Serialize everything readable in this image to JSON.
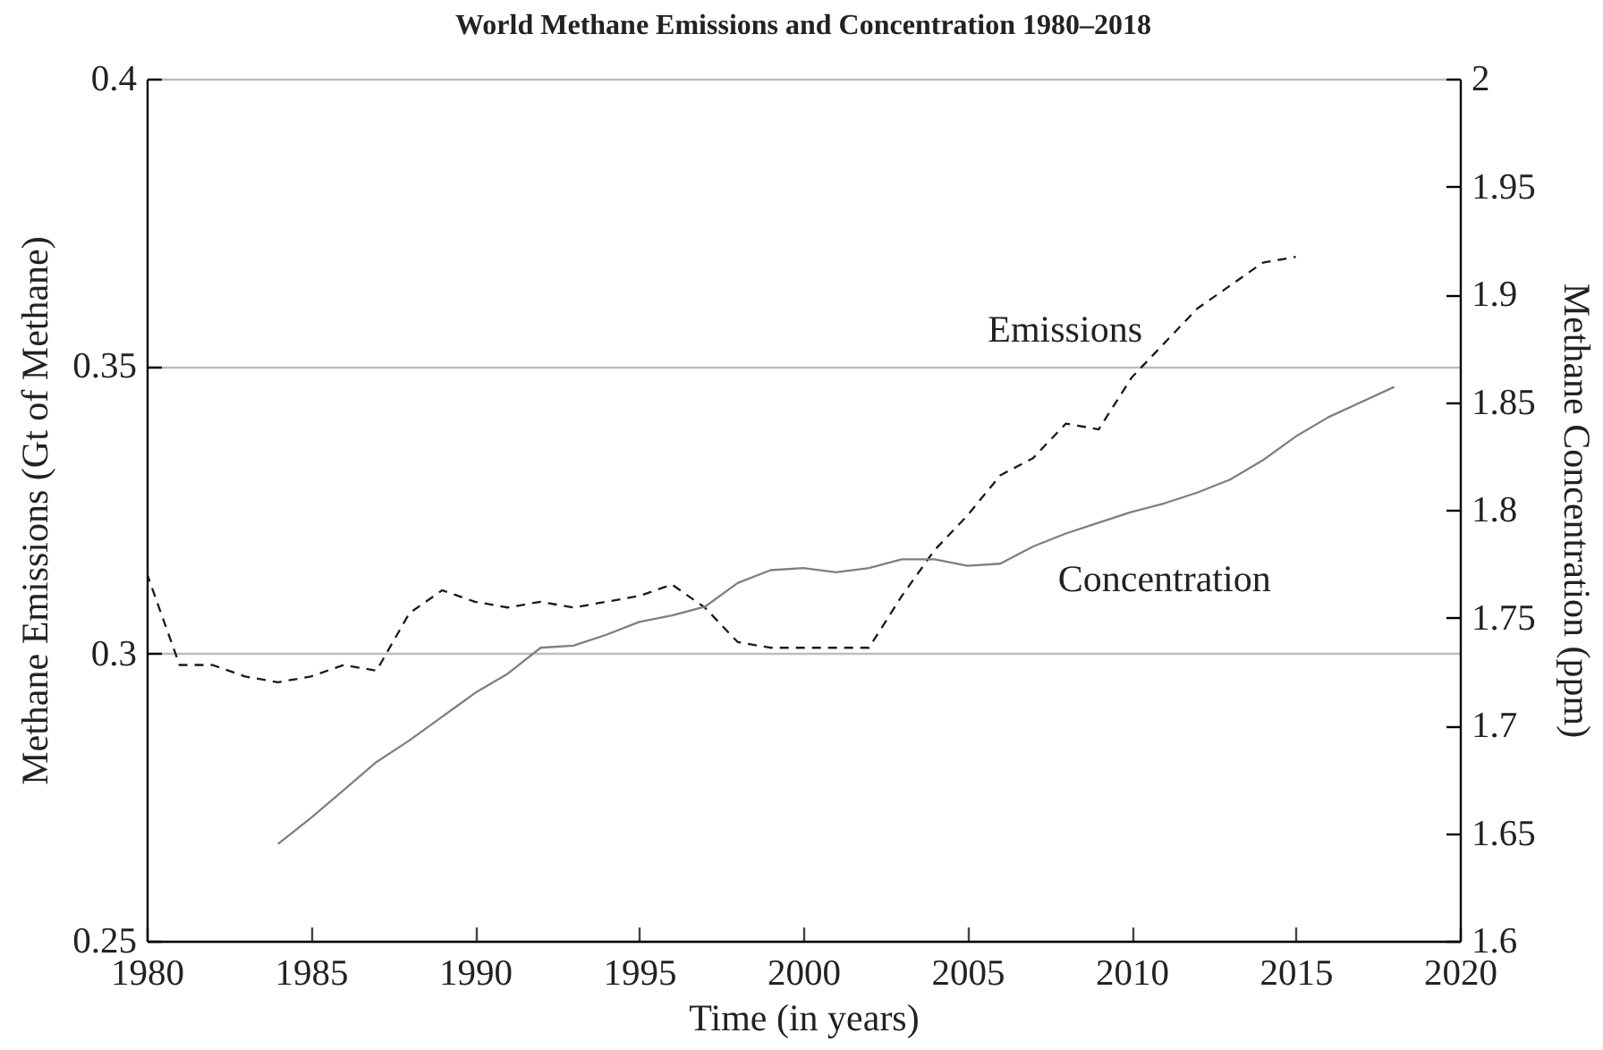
{
  "chart_data": {
    "type": "line",
    "title": "World Methane Emissions and Concentration 1980–2018",
    "xlabel": "Time (in years)",
    "ylabel": "Methane Emissions (Gt of Methane)",
    "y2label": "Methane Concentration (ppm)",
    "xlim": [
      1980,
      2020
    ],
    "xticks": [
      1980,
      1985,
      1990,
      1995,
      2000,
      2005,
      2010,
      2015,
      2020
    ],
    "ylim": [
      0.25,
      0.4
    ],
    "yticks": [
      0.25,
      0.3,
      0.35,
      0.4
    ],
    "y2lim": [
      1.6,
      2
    ],
    "y2ticks": [
      1.6,
      1.65,
      1.7,
      1.75,
      1.8,
      1.85,
      1.9,
      1.95,
      2
    ],
    "grid": "y",
    "series": [
      {
        "name": "Emissions",
        "color": "#1a1a1a",
        "line_style": "dashed",
        "x": [
          1980,
          1981,
          1982,
          1983,
          1984,
          1985,
          1986,
          1987,
          1988,
          1989,
          1990,
          1991,
          1992,
          1993,
          1994,
          1995,
          1996,
          1997,
          1998,
          1999,
          2000,
          2001,
          2002,
          2003,
          2004,
          2005,
          2006,
          2007,
          2008,
          2009,
          2010,
          2011,
          2012,
          2013,
          2014,
          2015
        ],
        "values": [
          0.314,
          0.298,
          0.298,
          0.296,
          0.295,
          0.296,
          0.298,
          0.297,
          0.307,
          0.311,
          0.309,
          0.308,
          0.309,
          0.308,
          0.309,
          0.31,
          0.312,
          0.308,
          0.302,
          0.301,
          0.301,
          0.301,
          0.301,
          0.31,
          0.318,
          0.324,
          0.331,
          0.334,
          0.34,
          0.339,
          0.348,
          0.354,
          0.36,
          0.364,
          0.368,
          0.369
        ]
      },
      {
        "name": "Concentration",
        "color": "#7f7f7f",
        "line_style": "solid",
        "axis": "y2",
        "x": [
          1984,
          1985,
          1986,
          1987,
          1988,
          1989,
          1990,
          1991,
          1992,
          1993,
          1994,
          1995,
          1996,
          1997,
          1998,
          1999,
          2000,
          2001,
          2002,
          2003,
          2004,
          2005,
          2006,
          2007,
          2008,
          2009,
          2010,
          2011,
          2012,
          2013,
          2014,
          2015,
          2016,
          2017,
          2018
        ],
        "values": [
          1.645,
          1.657,
          1.67,
          1.683,
          1.693,
          1.704,
          1.715,
          1.724,
          1.736,
          1.737,
          1.742,
          1.748,
          1.751,
          1.755,
          1.766,
          1.772,
          1.773,
          1.771,
          1.773,
          1.777,
          1.777,
          1.774,
          1.775,
          1.783,
          1.789,
          1.794,
          1.799,
          1.803,
          1.808,
          1.814,
          1.823,
          1.834,
          1.843,
          1.85,
          1.857
        ]
      }
    ]
  }
}
